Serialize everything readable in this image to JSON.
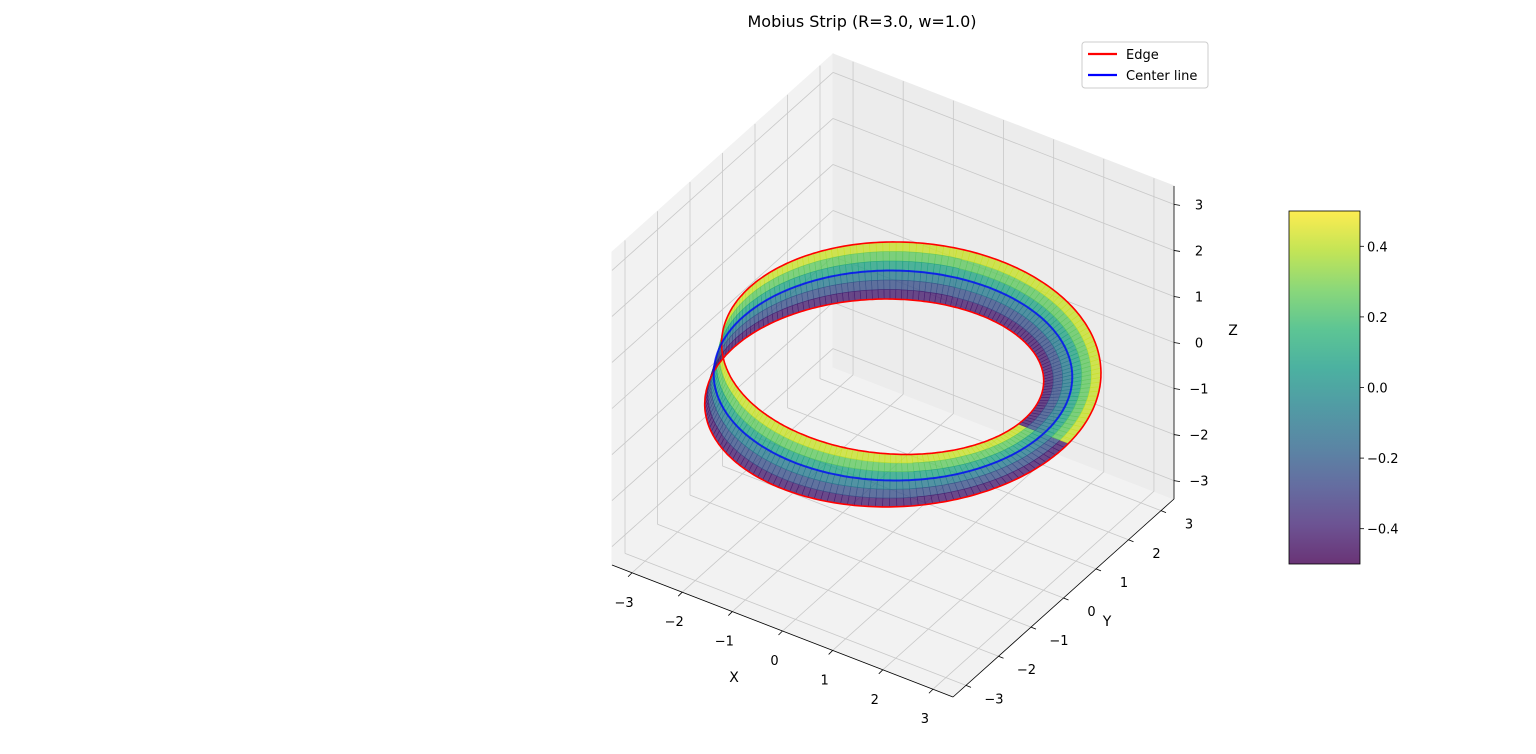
{
  "chart_data": {
    "type": "surface3d",
    "title": "Mobius Strip (R=3.0, w=1.0)",
    "xlabel": "X",
    "ylabel": "Y",
    "zlabel": "Z",
    "xlim": [
      -3.4,
      3.4
    ],
    "ylim": [
      -3.4,
      3.4
    ],
    "zlim": [
      -3.4,
      3.4
    ],
    "xticks": [
      -3,
      -2,
      -1,
      0,
      1,
      2,
      3
    ],
    "yticks": [
      -3,
      -2,
      -1,
      0,
      1,
      2,
      3
    ],
    "zticks": [
      -3,
      -2,
      -1,
      0,
      1,
      2,
      3
    ],
    "tick_labels": [
      "−3",
      "−2",
      "−1",
      "0",
      "1",
      "2",
      "3"
    ],
    "grid": true,
    "surface": {
      "R": 3.0,
      "w": 1.0,
      "colormap": "viridis",
      "color_variable": "v",
      "alpha": 0.8
    },
    "series": [
      {
        "name": "Edge",
        "color": "#ff0000",
        "kind": "boundary"
      },
      {
        "name": "Center line",
        "color": "#0000ff",
        "kind": "center"
      }
    ],
    "legend": {
      "position": "top-right"
    },
    "colorbar": {
      "range": [
        -0.5,
        0.5
      ],
      "ticks": [
        -0.4,
        -0.2,
        0.0,
        0.2,
        0.4
      ],
      "tick_labels": [
        "−0.4",
        "−0.2",
        "0.0",
        "0.2",
        "0.4"
      ],
      "cmap_stops": [
        "#440154",
        "#482878",
        "#3e4989",
        "#31688e",
        "#26828e",
        "#1f9e89",
        "#35b779",
        "#6ece58",
        "#b5de2b",
        "#fde725"
      ]
    }
  }
}
